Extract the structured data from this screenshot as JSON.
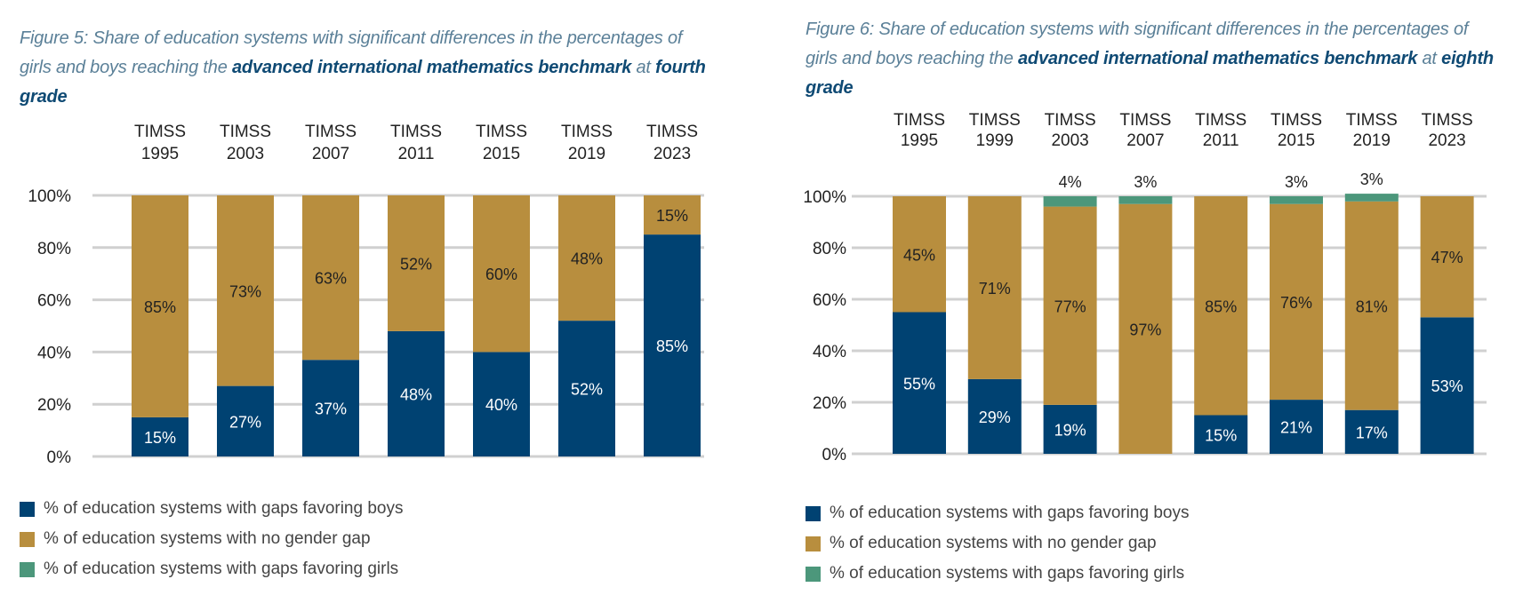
{
  "colors": {
    "boys": "#004272",
    "no_gap": "#b88e3e",
    "girls": "#4c977b",
    "grid": "#d0d0d0",
    "title": "#5b8098",
    "title_bold": "#0f4a74"
  },
  "legend": [
    "% of education systems with gaps favoring boys",
    "% of education systems with no gender gap",
    "% of education systems with gaps favoring girls"
  ],
  "chart_data": [
    {
      "type": "bar",
      "stacked": true,
      "title": {
        "pre": "Figure 5: Share of education systems with significant differences in the percentages of girls and boys reaching the ",
        "bold1": "advanced international mathematics benchmark",
        "mid": " at ",
        "bold2": "fourth grade"
      },
      "categories": [
        [
          "TIMSS",
          "1995"
        ],
        [
          "TIMSS",
          "2003"
        ],
        [
          "TIMSS",
          "2007"
        ],
        [
          "TIMSS",
          "2011"
        ],
        [
          "TIMSS",
          "2015"
        ],
        [
          "TIMSS",
          "2019"
        ],
        [
          "TIMSS",
          "2023"
        ]
      ],
      "series": [
        {
          "name": "% of education systems with gaps favoring boys",
          "values": [
            15,
            27,
            37,
            48,
            40,
            52,
            85
          ]
        },
        {
          "name": "% of education systems with no gender gap",
          "values": [
            85,
            73,
            63,
            52,
            60,
            48,
            15
          ]
        },
        {
          "name": "% of education systems with gaps favoring girls",
          "values": [
            0,
            0,
            0,
            0,
            0,
            0,
            0
          ]
        }
      ],
      "yticks": [
        "0%",
        "20%",
        "40%",
        "60%",
        "80%",
        "100%"
      ],
      "ylim": [
        0,
        100
      ],
      "grid": true,
      "legend_position": "bottom-left"
    },
    {
      "type": "bar",
      "stacked": true,
      "title": {
        "pre": "Figure 6: Share of education systems with significant differences in the percentages of girls and boys reaching the ",
        "bold1": "advanced international mathematics benchmark",
        "mid": " at ",
        "bold2": "eighth grade"
      },
      "categories": [
        [
          "TIMSS",
          "1995"
        ],
        [
          "TIMSS",
          "1999"
        ],
        [
          "TIMSS",
          "2003"
        ],
        [
          "TIMSS",
          "2007"
        ],
        [
          "TIMSS",
          "2011"
        ],
        [
          "TIMSS",
          "2015"
        ],
        [
          "TIMSS",
          "2019"
        ],
        [
          "TIMSS",
          "2023"
        ]
      ],
      "series": [
        {
          "name": "% of education systems with gaps favoring boys",
          "values": [
            55,
            29,
            19,
            0,
            15,
            21,
            17,
            53
          ]
        },
        {
          "name": "% of education systems with no gender gap",
          "values": [
            45,
            71,
            77,
            97,
            85,
            76,
            81,
            47
          ]
        },
        {
          "name": "% of education systems with gaps favoring girls",
          "values": [
            0,
            0,
            4,
            3,
            0,
            3,
            3,
            0
          ]
        }
      ],
      "yticks": [
        "0%",
        "20%",
        "40%",
        "60%",
        "80%",
        "100%"
      ],
      "ylim": [
        0,
        100
      ],
      "grid": true,
      "legend_position": "bottom-left"
    }
  ]
}
